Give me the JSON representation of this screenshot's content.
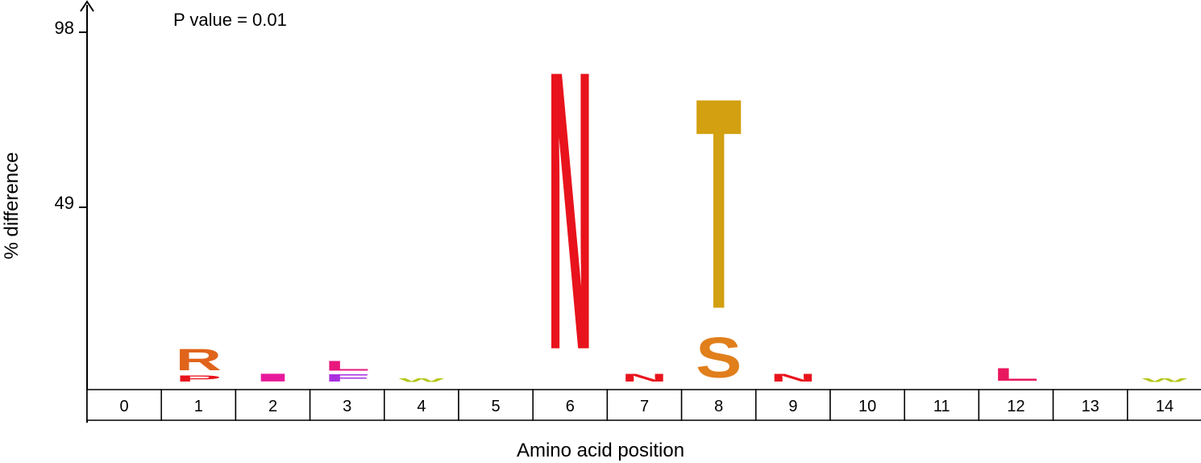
{
  "chart_data": {
    "type": "sequence-logo",
    "annotation": "P value = 0.01",
    "xlabel": "Amino acid position",
    "ylabel": "% difference",
    "ylim": [
      0,
      98
    ],
    "yticks": [
      49,
      98
    ],
    "positions": [
      "0",
      "1",
      "2",
      "3",
      "4",
      "5",
      "6",
      "7",
      "8",
      "9",
      "10",
      "11",
      "12",
      "13",
      "14"
    ],
    "letters": [
      {
        "position": "1",
        "stack": [
          {
            "letter": "P",
            "value": 2,
            "color": "#e8131c"
          },
          {
            "letter": "R",
            "value": 7,
            "color": "#e0641b"
          }
        ]
      },
      {
        "position": "2",
        "stack": [
          {
            "letter": "I",
            "value": 2.5,
            "color": "#e8189a"
          }
        ]
      },
      {
        "position": "3",
        "stack": [
          {
            "letter": "F",
            "value": 2.3,
            "color": "#a832e0"
          },
          {
            "letter": "L",
            "value": 3.2,
            "color": "#e8187c"
          }
        ]
      },
      {
        "position": "4",
        "stack": [
          {
            "letter": "W",
            "value": 1.2,
            "color": "#b5c81c"
          }
        ]
      },
      {
        "position": "6",
        "stack": [
          {
            "letter": "N",
            "value": 90,
            "color": "#e8131c"
          }
        ]
      },
      {
        "position": "7",
        "stack": [
          {
            "letter": "N",
            "value": 2.5,
            "color": "#e8131c"
          }
        ]
      },
      {
        "position": "8",
        "stack": [
          {
            "letter": "S",
            "value": 13,
            "color": "#e07f1b"
          },
          {
            "letter": "T",
            "value": 68,
            "color": "#d2a010"
          }
        ]
      },
      {
        "position": "9",
        "stack": [
          {
            "letter": "N",
            "value": 2.5,
            "color": "#e8131c"
          }
        ]
      },
      {
        "position": "12",
        "stack": [
          {
            "letter": "L",
            "value": 4,
            "color": "#e8185e"
          }
        ]
      },
      {
        "position": "14",
        "stack": [
          {
            "letter": "W",
            "value": 1.2,
            "color": "#b5c81c"
          }
        ]
      }
    ]
  }
}
